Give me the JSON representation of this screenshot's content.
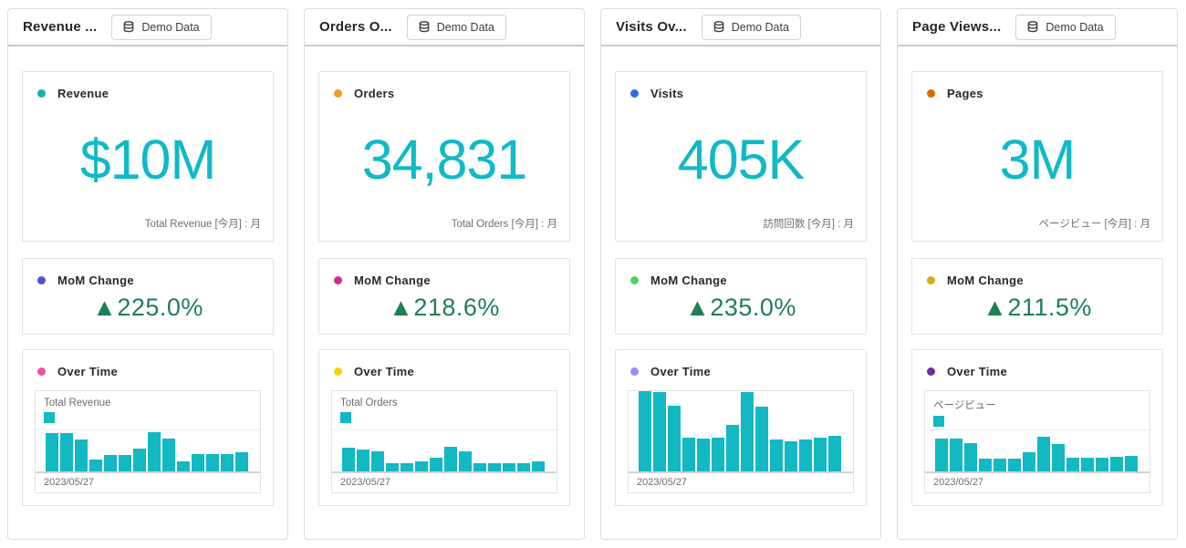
{
  "colors": {
    "teal_number": "#0FB9C6",
    "teal_bar": "#12B8C2",
    "positive_green": "#1E7E55"
  },
  "cards": [
    {
      "title": "Revenue ...",
      "demo_button_label": "Demo Data",
      "kpi": {
        "dot_color": "#12B2B5",
        "label": "Revenue",
        "value": "$10M",
        "caption": "Total Revenue [今月] : 月"
      },
      "mom": {
        "dot_color": "#4F4FD8",
        "label": "MoM Change",
        "value": "▲225.0%"
      },
      "over_time": {
        "dot_color": "#F24FA0",
        "label": "Over Time",
        "legend": "Total Revenue",
        "date": "2023/05/27",
        "bar_heights_pct": [
          94,
          94,
          78,
          29,
          40,
          40,
          56,
          96,
          81,
          25,
          42,
          42,
          42,
          46
        ]
      }
    },
    {
      "title": "Orders O...",
      "demo_button_label": "Demo Data",
      "kpi": {
        "dot_color": "#F59A23",
        "label": "Orders",
        "value": "34,831",
        "caption": "Total Orders [今月] : 月"
      },
      "mom": {
        "dot_color": "#D12D8F",
        "label": "MoM Change",
        "value": "▲218.6%"
      },
      "over_time": {
        "dot_color": "#F5D30C",
        "label": "Over Time",
        "legend": "Total Orders",
        "date": "2023/05/27",
        "bar_heights_pct": [
          58,
          54,
          50,
          21,
          21,
          25,
          33,
          60,
          48,
          21,
          21,
          21,
          21,
          25
        ]
      }
    },
    {
      "title": "Visits Ov...",
      "demo_button_label": "Demo Data",
      "kpi": {
        "dot_color": "#2D68F0",
        "label": "Visits",
        "value": "405K",
        "caption": "訪問回数 [今月] : 月"
      },
      "mom": {
        "dot_color": "#4ED45A",
        "label": "MoM Change",
        "value": "▲235.0%"
      },
      "over_time": {
        "dot_color": "#9D8CF2",
        "label": "Over Time",
        "legend": "",
        "date": "2023/05/27",
        "bar_heights_pct": [
          100,
          99,
          82,
          42,
          41,
          42,
          58,
          99,
          81,
          40,
          38,
          40,
          42,
          44
        ]
      }
    },
    {
      "title": "Page Views...",
      "demo_button_label": "Demo Data",
      "kpi": {
        "dot_color": "#DD6904",
        "label": "Pages",
        "value": "3M",
        "caption": "ページビュー [今月] : 月"
      },
      "mom": {
        "dot_color": "#D4AF0D",
        "label": "MoM Change",
        "value": "▲211.5%"
      },
      "over_time": {
        "dot_color": "#6B2FA0",
        "label": "Over Time",
        "legend": "ページビュー",
        "date": "2023/05/27",
        "bar_heights_pct": [
          81,
          81,
          69,
          31,
          31,
          31,
          46,
          85,
          67,
          33,
          33,
          33,
          35,
          37
        ]
      }
    }
  ],
  "chart_data": [
    {
      "type": "bar",
      "title": "Revenue Over Time",
      "series_name": "Total Revenue",
      "x_first_label": "2023/05/27",
      "values_relative_pct": [
        94,
        94,
        78,
        29,
        40,
        40,
        56,
        96,
        81,
        25,
        42,
        42,
        42,
        46
      ]
    },
    {
      "type": "bar",
      "title": "Orders Over Time",
      "series_name": "Total Orders",
      "x_first_label": "2023/05/27",
      "values_relative_pct": [
        58,
        54,
        50,
        21,
        21,
        25,
        33,
        60,
        48,
        21,
        21,
        21,
        21,
        25
      ]
    },
    {
      "type": "bar",
      "title": "Visits Over Time",
      "series_name": "Visits",
      "x_first_label": "2023/05/27",
      "values_relative_pct": [
        100,
        99,
        82,
        42,
        41,
        42,
        58,
        99,
        81,
        40,
        38,
        40,
        42,
        44
      ]
    },
    {
      "type": "bar",
      "title": "Page Views Over Time",
      "series_name": "ページビュー",
      "x_first_label": "2023/05/27",
      "values_relative_pct": [
        81,
        81,
        69,
        31,
        31,
        31,
        46,
        85,
        67,
        33,
        33,
        33,
        35,
        37
      ]
    }
  ]
}
